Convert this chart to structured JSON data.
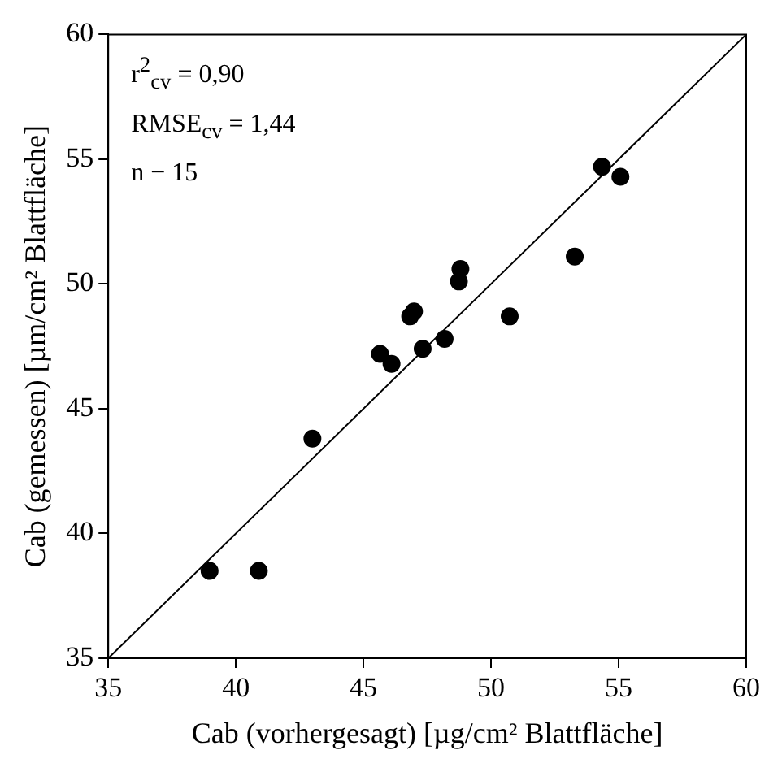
{
  "chart_data": {
    "type": "scatter",
    "xlabel": "Cab (vorhergesagt) [µg/cm² Blattfläche]",
    "ylabel": "Cab (gemessen) [µm/cm² Blattfläche]",
    "annotations": [
      "r$^{2}$$_{cv}$ = 0,90",
      "RMSE$_{cv}$ = 1,44",
      "n − 15"
    ],
    "xlim": [
      35,
      60
    ],
    "xticks": [
      35,
      40,
      45,
      50,
      55,
      60
    ],
    "ylim": [
      35,
      60
    ],
    "yticks": [
      35,
      40,
      45,
      50,
      55,
      60
    ],
    "grid": false,
    "series": [
      {
        "type": "scatter",
        "marker": "circle",
        "color": "#000000",
        "x": [
          38.97,
          40.9,
          43.0,
          45.65,
          46.1,
          46.83,
          46.98,
          47.32,
          48.18,
          48.74,
          48.8,
          50.73,
          53.28,
          54.35,
          55.07
        ],
        "values": [
          38.5,
          38.5,
          43.8,
          47.2,
          46.8,
          48.7,
          48.9,
          47.4,
          47.8,
          50.1,
          50.6,
          48.7,
          51.1,
          54.7,
          54.3
        ]
      },
      {
        "type": "line",
        "color": "#000000",
        "x": [
          35,
          60
        ],
        "values": [
          35,
          60
        ]
      }
    ]
  }
}
